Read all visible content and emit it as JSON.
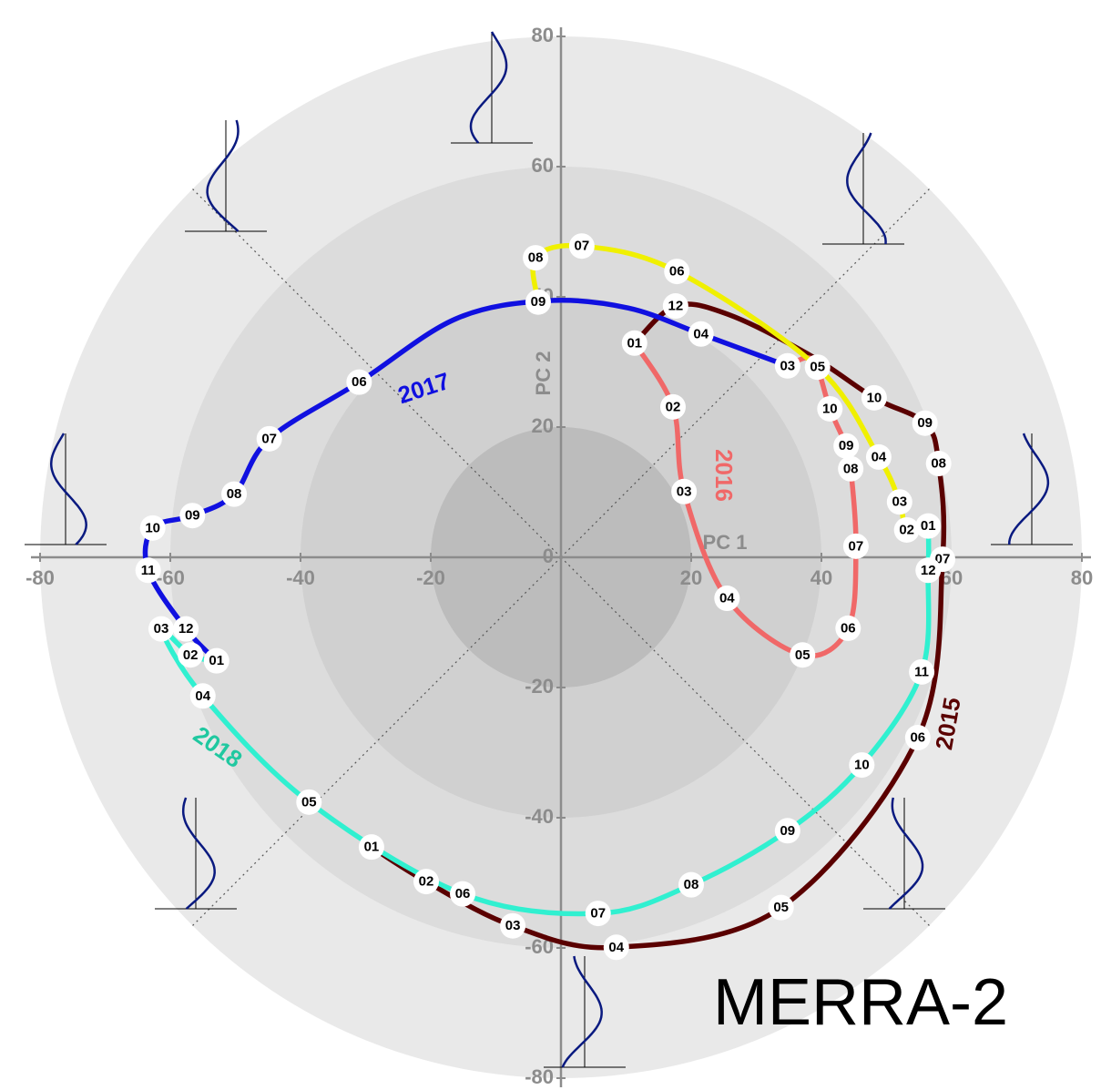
{
  "chart_data": {
    "type": "line",
    "title": "MERRA-2",
    "xlabel": "PC 1",
    "ylabel": "PC 2",
    "xlim": [
      -80,
      80
    ],
    "ylim": [
      -80,
      80
    ],
    "xticks": [
      -80,
      -60,
      -40,
      -20,
      20,
      40,
      60,
      80
    ],
    "yticks": [
      -80,
      -60,
      -40,
      -20,
      0,
      20,
      40,
      60,
      80
    ],
    "series": [
      {
        "name": "2015",
        "color": "#5a0000",
        "x": [
          -29.1,
          -20.7,
          -7.4,
          8.5,
          33.8,
          54.8,
          58.6,
          58.0,
          55.9,
          48.1,
          38.3,
          25.7,
          17.6,
          11.3
        ],
        "y": [
          -44.5,
          -49.8,
          -56.6,
          -59.9,
          -53.8,
          -27.7,
          -0.3,
          14.4,
          20.6,
          24.5,
          31.0,
          37.3,
          38.6,
          32.9
        ],
        "labels": [
          "01",
          "02",
          "03",
          "04",
          "05",
          "06",
          "07",
          "08",
          "09",
          "10",
          null,
          null,
          "12",
          null
        ]
      },
      {
        "name": "2016",
        "color": "#f06868",
        "x": [
          11.3,
          17.2,
          18.9,
          25.5,
          37.1,
          44.1,
          45.3,
          44.5,
          43.8,
          41.3,
          38.7,
          34.8
        ],
        "y": [
          32.9,
          23.1,
          10.1,
          -6.3,
          -15.0,
          -10.9,
          1.7,
          13.6,
          17.1,
          22.8,
          30.3,
          29.4
        ],
        "labels": [
          "01",
          "02",
          "03",
          "04",
          "05",
          "06",
          "07",
          "08",
          "09",
          "10",
          null,
          null
        ]
      },
      {
        "name": "2017",
        "color": "#1010e0",
        "x": [
          34.8,
          21.5,
          10.3,
          -2.2,
          -16.2,
          -31.0,
          -44.8,
          -50.2,
          -56.6,
          -62.7,
          -63.4,
          -57.6,
          -52.9
        ],
        "y": [
          29.4,
          34.3,
          38.3,
          39.4,
          36.6,
          26.9,
          18.2,
          9.7,
          6.4,
          4.5,
          -2.0,
          -11.0,
          -15.9
        ],
        "labels": [
          "03",
          "04",
          null,
          null,
          null,
          "06",
          "07",
          "08",
          "09",
          "10",
          "11",
          "12",
          null
        ]
      },
      {
        "name": "2018",
        "color": "#30f0d0",
        "x": [
          -52.9,
          -56.9,
          -61.4,
          -55.0,
          -38.7,
          -15.1,
          5.7,
          20.0,
          34.8,
          46.2,
          55.4,
          56.4,
          56.4
        ],
        "y": [
          -15.9,
          -15.0,
          -11.0,
          -21.3,
          -37.6,
          -51.7,
          -54.7,
          -50.3,
          -42.0,
          -31.9,
          -17.6,
          -2.0,
          4.8
        ],
        "labels": [
          "01",
          "02",
          "03",
          "04",
          "05",
          "06",
          "07",
          "08",
          "09",
          "10",
          "11",
          "12",
          null
        ]
      },
      {
        "color": "#f0f000",
        "x": [
          56.4,
          53.1,
          52.0,
          48.8,
          39.4,
          17.8,
          3.2,
          -3.9,
          -3.5
        ],
        "y": [
          4.8,
          4.2,
          8.5,
          15.4,
          29.2,
          43.9,
          47.8,
          46.0,
          39.2
        ],
        "labels": [
          "01",
          "02",
          "03",
          "04",
          "05",
          "06",
          "07",
          "08",
          "09"
        ]
      }
    ]
  }
}
